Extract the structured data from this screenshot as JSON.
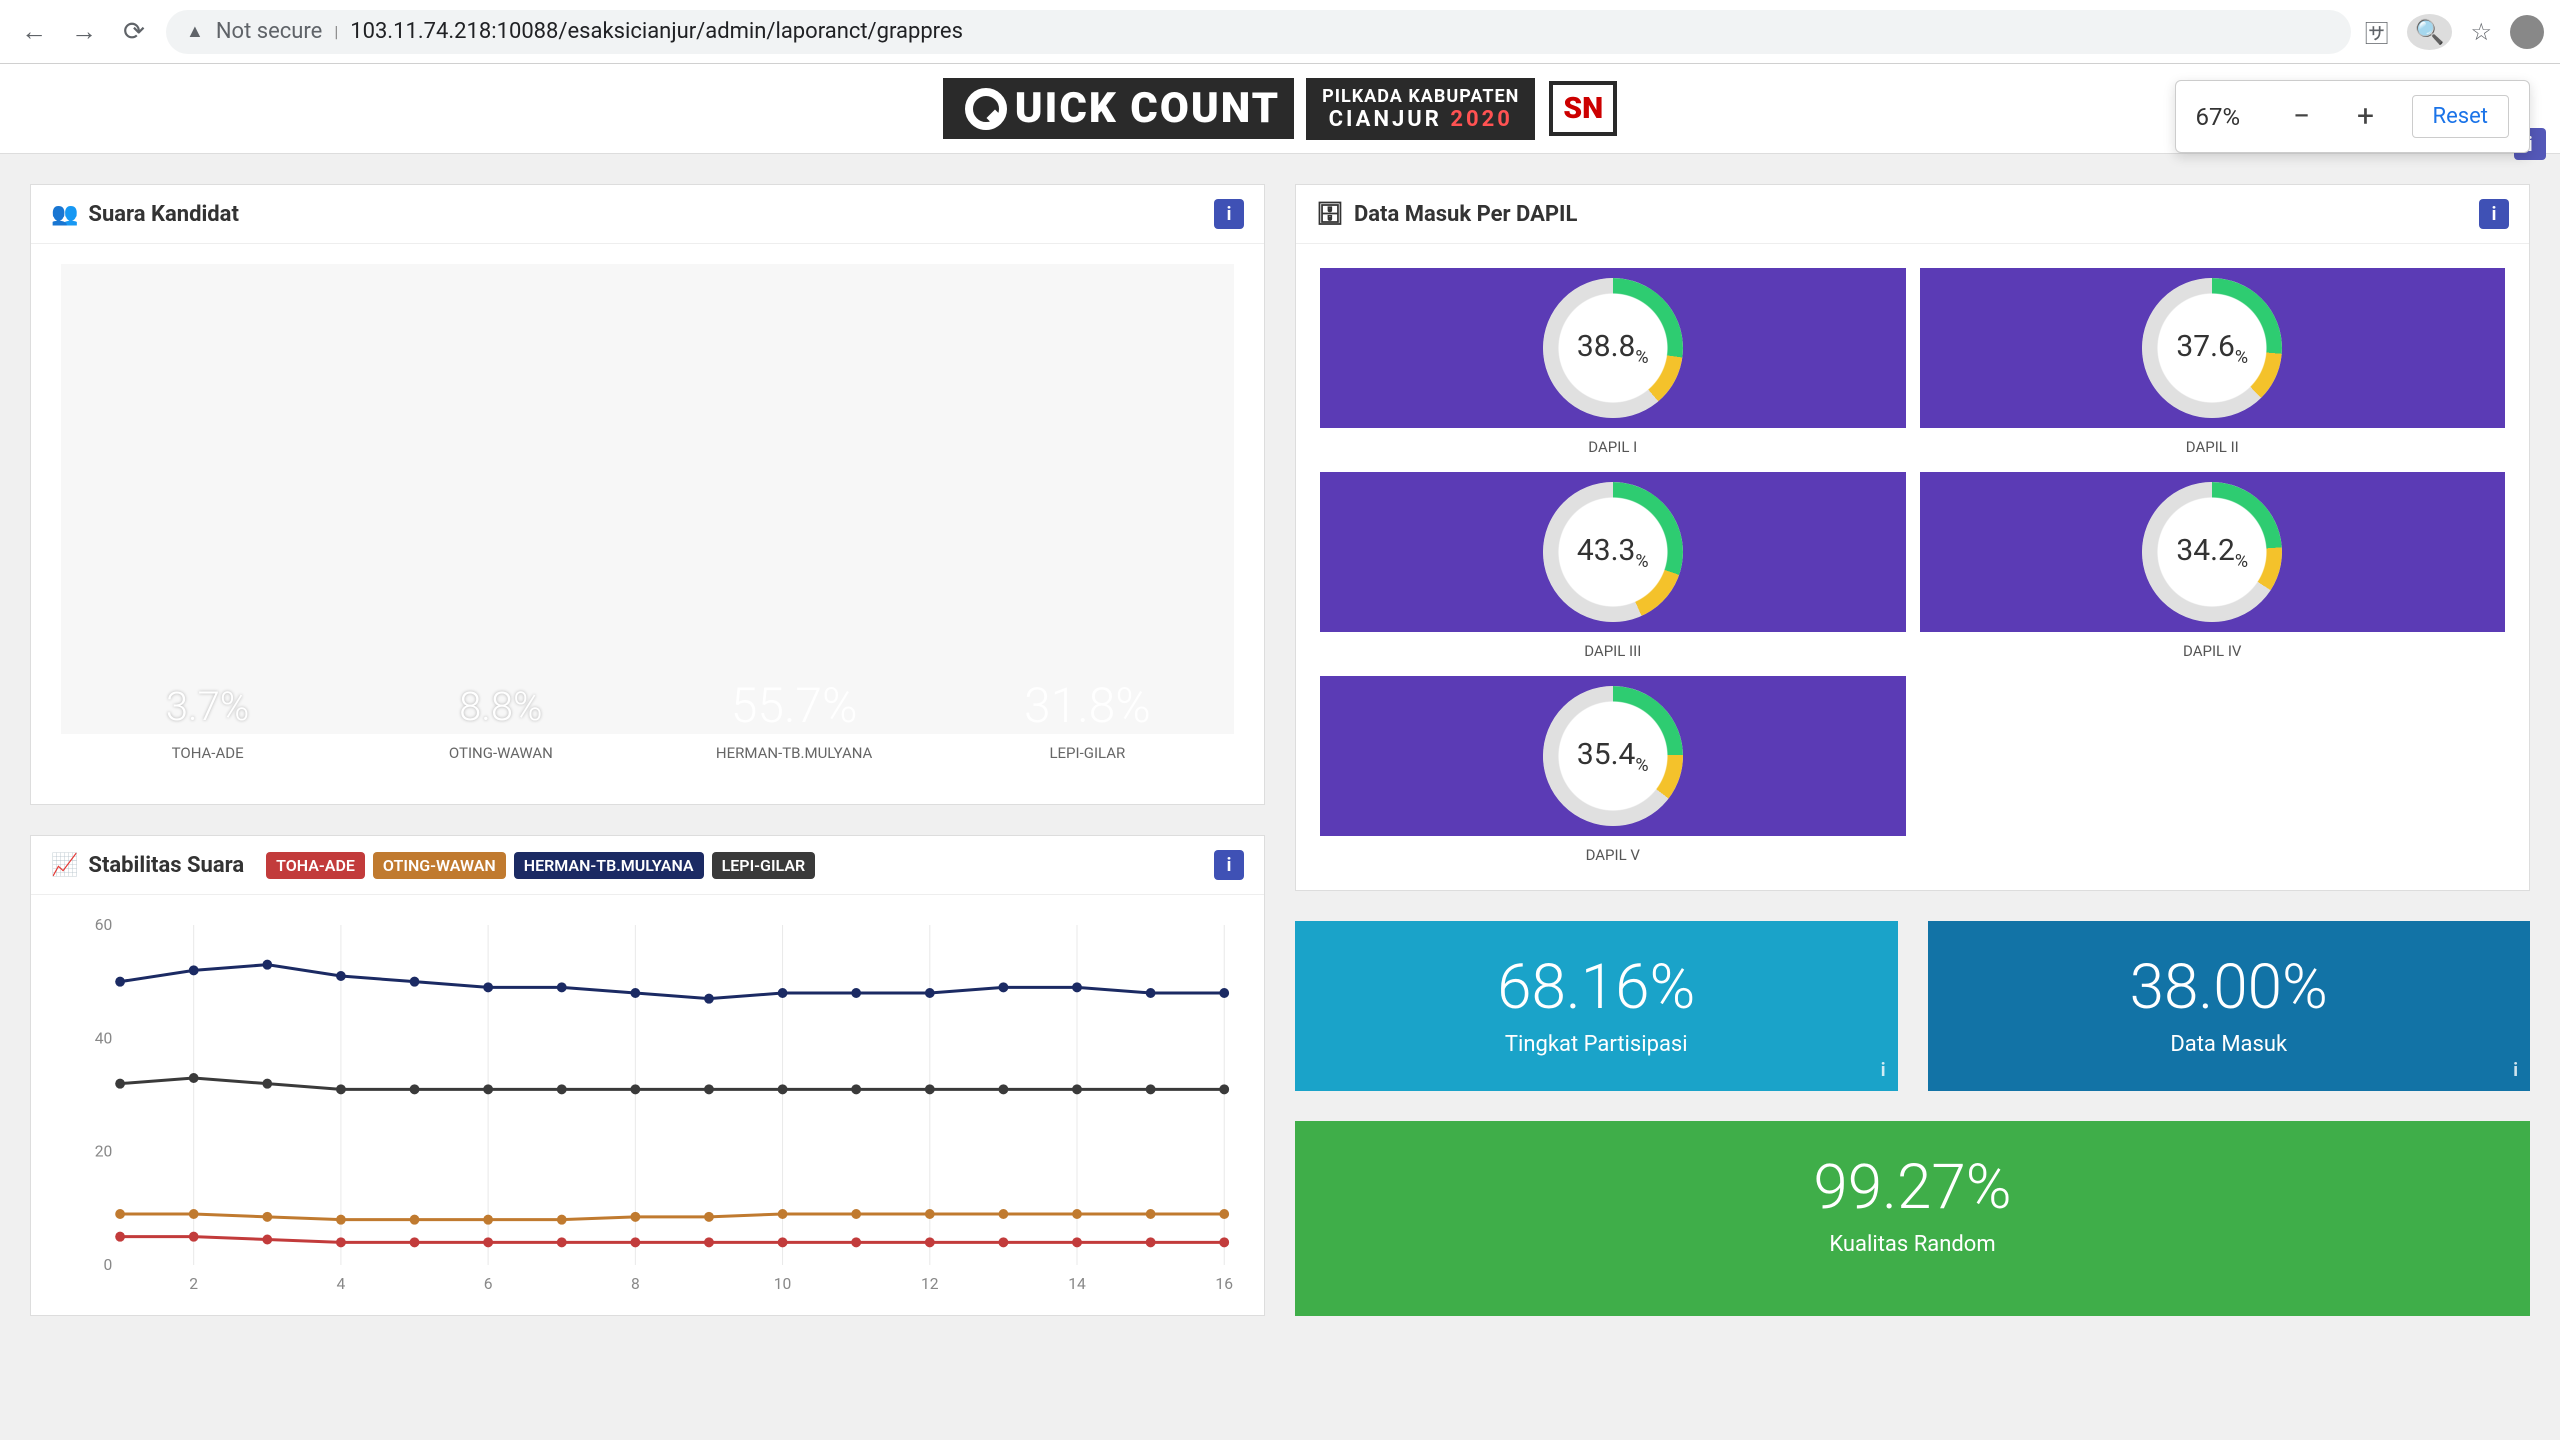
{
  "browser": {
    "not_secure": "Not secure",
    "url": "103.11.74.218:10088/esaksicianjur/admin/laporanct/grappres"
  },
  "zoom": {
    "pct": "67%",
    "reset": "Reset"
  },
  "banner": {
    "quick_left": "Q",
    "quick_right": "UICK COUNT",
    "sub1": "PILKADA KABUPATEN",
    "sub2_a": "CIANJUR ",
    "sub2_b": "2020",
    "badge": "SN"
  },
  "panels": {
    "suara_title": "Suara Kandidat",
    "dapil_title": "Data Masuk Per DAPIL",
    "stabilitas_title": "Stabilitas Suara"
  },
  "bar_chart": {
    "type": "bar",
    "background_color": "#f7f7f7",
    "bar_width_pct": 20,
    "label_font_size": 15,
    "pct_font_size": 48,
    "pct_font_size_small": 40,
    "categories": [
      "TOHA-ADE",
      "OTING-WAWAN",
      "HERMAN-TB.MULYANA",
      "LEPI-GILAR"
    ],
    "values": [
      3.7,
      8.8,
      55.7,
      31.8
    ],
    "value_labels": [
      "3.7%",
      "8.8%",
      "55.7%",
      "31.8%"
    ],
    "colors": [
      "#c23b3b",
      "#c07a2f",
      "#1b2a63",
      "#1d1d1d"
    ]
  },
  "line_chart": {
    "type": "line",
    "ylim": [
      0,
      60
    ],
    "ytick_step": 20,
    "xticks": [
      2,
      4,
      6,
      8,
      10,
      12,
      14,
      16
    ],
    "grid_color": "#e8e8e8",
    "line_width": 3,
    "marker": "circle",
    "marker_size": 5,
    "legend_labels": [
      "TOHA-ADE",
      "OTING-WAWAN",
      "HERMAN-TB.MULYANA",
      "LEPI-GILAR"
    ],
    "legend_colors": [
      "#c23b3b",
      "#c07a2f",
      "#1b2a63",
      "#3a3a3a"
    ],
    "series": [
      {
        "name": "TOHA-ADE",
        "color": "#c23b3b",
        "y": [
          5,
          5,
          4.5,
          4,
          4,
          4,
          4,
          4,
          4,
          4,
          4,
          4,
          4,
          4,
          4,
          4
        ]
      },
      {
        "name": "OTING-WAWAN",
        "color": "#c07a2f",
        "y": [
          9,
          9,
          8.5,
          8,
          8,
          8,
          8,
          8.5,
          8.5,
          9,
          9,
          9,
          9,
          9,
          9,
          9
        ]
      },
      {
        "name": "HERMAN-TB.MULYANA",
        "color": "#1b2a63",
        "y": [
          50,
          52,
          53,
          51,
          50,
          49,
          49,
          48,
          47,
          48,
          48,
          48,
          49,
          49,
          48,
          48
        ]
      },
      {
        "name": "LEPI-GILAR",
        "color": "#3a3a3a",
        "y": [
          32,
          33,
          32,
          31,
          31,
          31,
          31,
          31,
          31,
          31,
          31,
          31,
          31,
          31,
          31,
          31
        ]
      }
    ]
  },
  "dapil": {
    "tile_bg": "#5b3bb5",
    "ring_bg": "#ffffff",
    "ring_track": "#e0e0e0",
    "ring_arc1": "#2ecc71",
    "ring_arc2": "#f4c22b",
    "font_size": 30,
    "items": [
      {
        "value": "38.8",
        "pct": 38.8,
        "label": "DAPIL I"
      },
      {
        "value": "37.6",
        "pct": 37.6,
        "label": "DAPIL II"
      },
      {
        "value": "43.3",
        "pct": 43.3,
        "label": "DAPIL III"
      },
      {
        "value": "34.2",
        "pct": 34.2,
        "label": "DAPIL IV"
      },
      {
        "value": "35.4",
        "pct": 35.4,
        "label": "DAPIL V"
      }
    ]
  },
  "stats": {
    "partisipasi": {
      "value": "68.16%",
      "label": "Tingkat Partisipasi",
      "bg": "#1aa3c9"
    },
    "datamasuk": {
      "value": "38.00%",
      "label": "Data Masuk",
      "bg": "#1273a6"
    },
    "kualitas": {
      "value": "99.27%",
      "label": "Kualitas Random",
      "bg": "#3fae49"
    }
  }
}
